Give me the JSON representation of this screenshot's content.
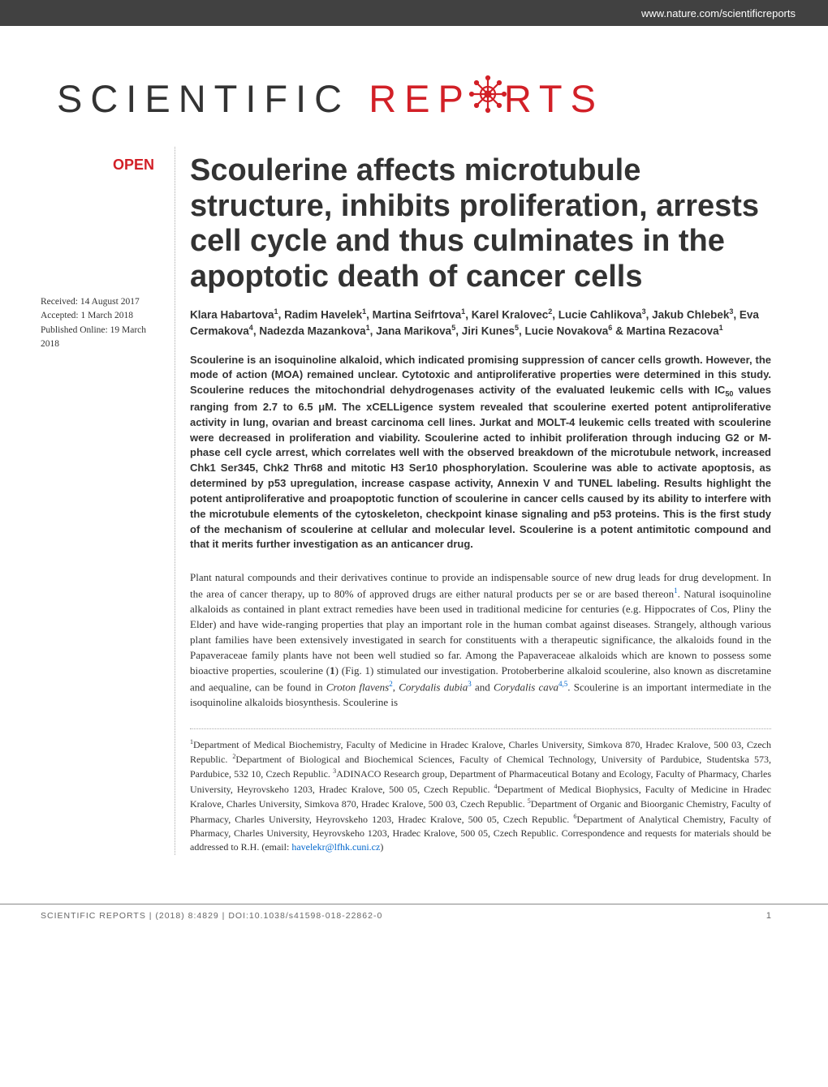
{
  "header": {
    "url": "www.nature.com/scientificreports"
  },
  "logo": {
    "text_left": "SCIENTIFIC",
    "text_right_before": "REP",
    "text_right_after": "RTS",
    "gear_color": "#d22027"
  },
  "badge": {
    "open_label": "OPEN"
  },
  "dates": {
    "received": "Received: 14 August 2017",
    "accepted": "Accepted: 1 March 2018",
    "published": "Published Online: 19 March 2018"
  },
  "article": {
    "title": "Scoulerine affects microtubule structure, inhibits proliferation, arrests cell cycle and thus culminates in the apoptotic death of cancer cells",
    "authors_html": "Klara Habartova<sup>1</sup>, Radim Havelek<sup>1</sup>, Martina Seifrtova<sup>1</sup>, Karel Kralovec<sup>2</sup>, Lucie Cahlikova<sup>3</sup>, Jakub Chlebek<sup>3</sup>, Eva Cermakova<sup>4</sup>, Nadezda Mazankova<sup>1</sup>, Jana Marikova<sup>5</sup>, Jiri Kunes<sup>5</sup>, Lucie Novakova<sup>6</sup> &amp; Martina Rezacova<sup>1</sup>",
    "abstract_html": "Scoulerine is an isoquinoline alkaloid, which indicated promising suppression of cancer cells growth. However, the mode of action (MOA) remained unclear. Cytotoxic and antiproliferative properties were determined in this study. Scoulerine reduces the mitochondrial dehydrogenases activity of the evaluated leukemic cells with IC<sub>50</sub> values ranging from 2.7 to 6.5 μM. The xCELLigence system revealed that scoulerine exerted potent antiproliferative activity in lung, ovarian and breast carcinoma cell lines. Jurkat and MOLT-4 leukemic cells treated with scoulerine were decreased in proliferation and viability. Scoulerine acted to inhibit proliferation through inducing G2 or M-phase cell cycle arrest, which correlates well with the observed breakdown of the microtubule network, increased Chk1 Ser345, Chk2 Thr68 and mitotic H3 Ser10 phosphorylation. Scoulerine was able to activate apoptosis, as determined by p53 upregulation, increase caspase activity, Annexin V and TUNEL labeling. Results highlight the potent antiproliferative and proapoptotic function of scoulerine in cancer cells caused by its ability to interfere with the microtubule elements of the cytoskeleton, checkpoint kinase signaling and p53 proteins. This is the first study of the mechanism of scoulerine at cellular and molecular level. Scoulerine is a potent antimitotic compound and that it merits further investigation as an anticancer drug.",
    "body_html": "Plant natural compounds and their derivatives continue to provide an indispensable source of new drug leads for drug development. In the area of cancer therapy, up to 80% of approved drugs are either natural products per se or are based thereon<sup>1</sup>. Natural isoquinoline alkaloids as contained in plant extract remedies have been used in traditional medicine for centuries (e.g. Hippocrates of Cos, Pliny the Elder) and have wide-ranging properties that play an important role in the human combat against diseases. Strangely, although various plant families have been extensively investigated in search for constituents with a therapeutic significance, the alkaloids found in the Papaveraceae family plants have not been well studied so far. Among the Papaveraceae alkaloids which are known to possess some bioactive properties, scoulerine (<b>1</b>) (Fig. 1) stimulated our investigation. Protoberberine alkaloid scoulerine, also known as discretamine and aequaline, can be found in <span class=\"italic\">Croton flavens</span><sup>2</sup>, <span class=\"italic\">Corydalis dubia</span><sup>3</sup> and <span class=\"italic\">Corydalis cava</span><sup>4,5</sup>. Scoulerine is an important intermediate in the isoquinoline alkaloids biosynthesis. Scoulerine is",
    "affiliations_html": "<sup>1</sup>Department of Medical Biochemistry, Faculty of Medicine in Hradec Kralove, Charles University, Simkova 870, Hradec Kralove, 500 03, Czech Republic. <sup>2</sup>Department of Biological and Biochemical Sciences, Faculty of Chemical Technology, University of Pardubice, Studentska 573, Pardubice, 532 10, Czech Republic. <sup>3</sup>ADINACO Research group, Department of Pharmaceutical Botany and Ecology, Faculty of Pharmacy, Charles University, Heyrovskeho 1203, Hradec Kralove, 500 05, Czech Republic. <sup>4</sup>Department of Medical Biophysics, Faculty of Medicine in Hradec Kralove, Charles University, Simkova 870, Hradec Kralove, 500 03, Czech Republic. <sup>5</sup>Department of Organic and Bioorganic Chemistry, Faculty of Pharmacy, Charles University, Heyrovskeho 1203, Hradec Kralove, 500 05, Czech Republic. <sup>6</sup>Department of Analytical Chemistry, Faculty of Pharmacy, Charles University, Heyrovskeho 1203, Hradec Kralove, 500 05, Czech Republic. Correspondence and requests for materials should be addressed to R.H. (email: <span class=\"email\">havelekr@lfhk.cuni.cz</span>)"
  },
  "footer": {
    "citation": "SCIENTIFIC REPORTS | (2018) 8:4829 | DOI:10.1038/s41598-018-22862-0",
    "page_number": "1"
  }
}
